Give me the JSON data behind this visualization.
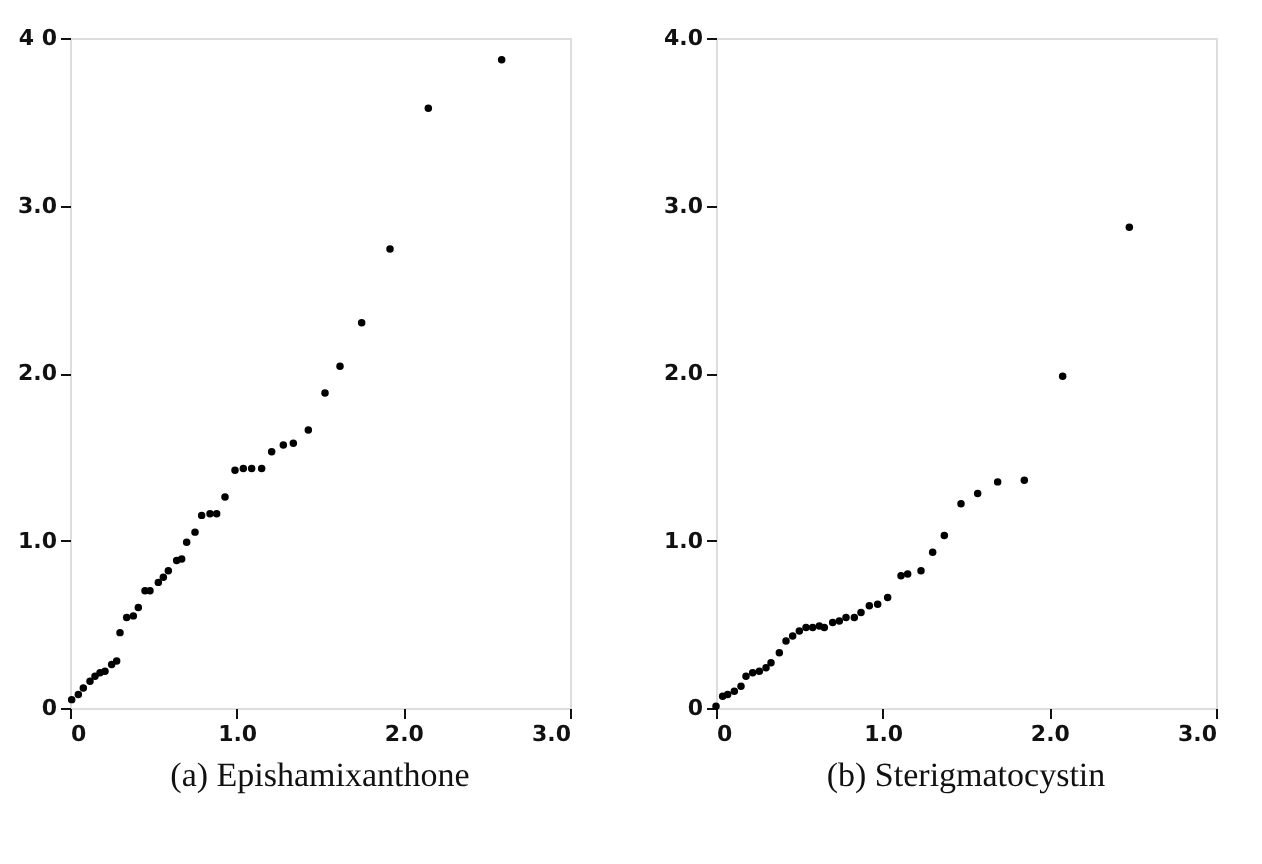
{
  "chart_data": [
    {
      "type": "scatter",
      "title": "(a)  Epishamixanthone",
      "marker": "circle",
      "xlim": [
        0,
        3.0
      ],
      "ylim": [
        0,
        4.0
      ],
      "xticks": [
        0,
        {
          "value": 1,
          "label": "1.0"
        },
        {
          "value": 2,
          "label": "2.0"
        },
        {
          "value": 3,
          "label": "3.0"
        }
      ],
      "yticks": [
        0,
        {
          "value": 1,
          "label": "1.0"
        },
        {
          "value": 2,
          "label": "2.0"
        },
        {
          "value": 3,
          "label": "3.0"
        },
        {
          "value": 4,
          "label": "4 0"
        }
      ],
      "series": [
        {
          "color": "#000000",
          "x": [
            0.01,
            0.05,
            0.08,
            0.12,
            0.15,
            0.18,
            0.21,
            0.25,
            0.28,
            0.3,
            0.34,
            0.38,
            0.41,
            0.45,
            0.48,
            0.53,
            0.56,
            0.59,
            0.64,
            0.67,
            0.7,
            0.75,
            0.79,
            0.84,
            0.88,
            0.93,
            0.99,
            1.04,
            1.09,
            1.15,
            1.21,
            1.28,
            1.34,
            1.43,
            1.53,
            1.62,
            1.75,
            1.92,
            2.15,
            2.59
          ],
          "values": [
            0.05,
            0.08,
            0.12,
            0.16,
            0.19,
            0.21,
            0.22,
            0.26,
            0.28,
            0.45,
            0.54,
            0.55,
            0.6,
            0.7,
            0.7,
            0.75,
            0.78,
            0.82,
            0.88,
            0.89,
            0.99,
            1.05,
            1.15,
            1.16,
            1.16,
            1.26,
            1.42,
            1.43,
            1.43,
            1.43,
            1.53,
            1.57,
            1.58,
            1.66,
            1.88,
            2.04,
            2.3,
            2.74,
            3.58,
            3.87
          ]
        }
      ]
    },
    {
      "type": "scatter",
      "title": "(b)  Sterigmatocystin",
      "marker": "circle",
      "xlim": [
        0,
        3.0
      ],
      "ylim": [
        0,
        4.0
      ],
      "xticks": [
        0,
        {
          "value": 1,
          "label": "1.0"
        },
        {
          "value": 2,
          "label": "2.0"
        },
        {
          "value": 3,
          "label": "3.0"
        }
      ],
      "yticks": [
        0,
        {
          "value": 1,
          "label": "1.0"
        },
        {
          "value": 2,
          "label": "2.0"
        },
        {
          "value": 3,
          "label": "3.0"
        },
        {
          "value": 4,
          "label": "4.0"
        }
      ],
      "series": [
        {
          "color": "#000000",
          "x": [
            0.0,
            0.04,
            0.07,
            0.11,
            0.15,
            0.18,
            0.22,
            0.26,
            0.3,
            0.33,
            0.38,
            0.42,
            0.46,
            0.5,
            0.54,
            0.58,
            0.62,
            0.65,
            0.7,
            0.74,
            0.78,
            0.83,
            0.87,
            0.92,
            0.97,
            1.03,
            1.11,
            1.15,
            1.23,
            1.3,
            1.37,
            1.47,
            1.57,
            1.69,
            1.85,
            2.08,
            2.48
          ],
          "values": [
            0.01,
            0.07,
            0.08,
            0.1,
            0.13,
            0.19,
            0.21,
            0.22,
            0.24,
            0.27,
            0.33,
            0.4,
            0.43,
            0.46,
            0.48,
            0.48,
            0.49,
            0.48,
            0.51,
            0.52,
            0.54,
            0.54,
            0.57,
            0.61,
            0.62,
            0.66,
            0.79,
            0.8,
            0.82,
            0.93,
            1.03,
            1.22,
            1.28,
            1.35,
            1.36,
            1.98,
            2.87
          ]
        }
      ]
    }
  ]
}
